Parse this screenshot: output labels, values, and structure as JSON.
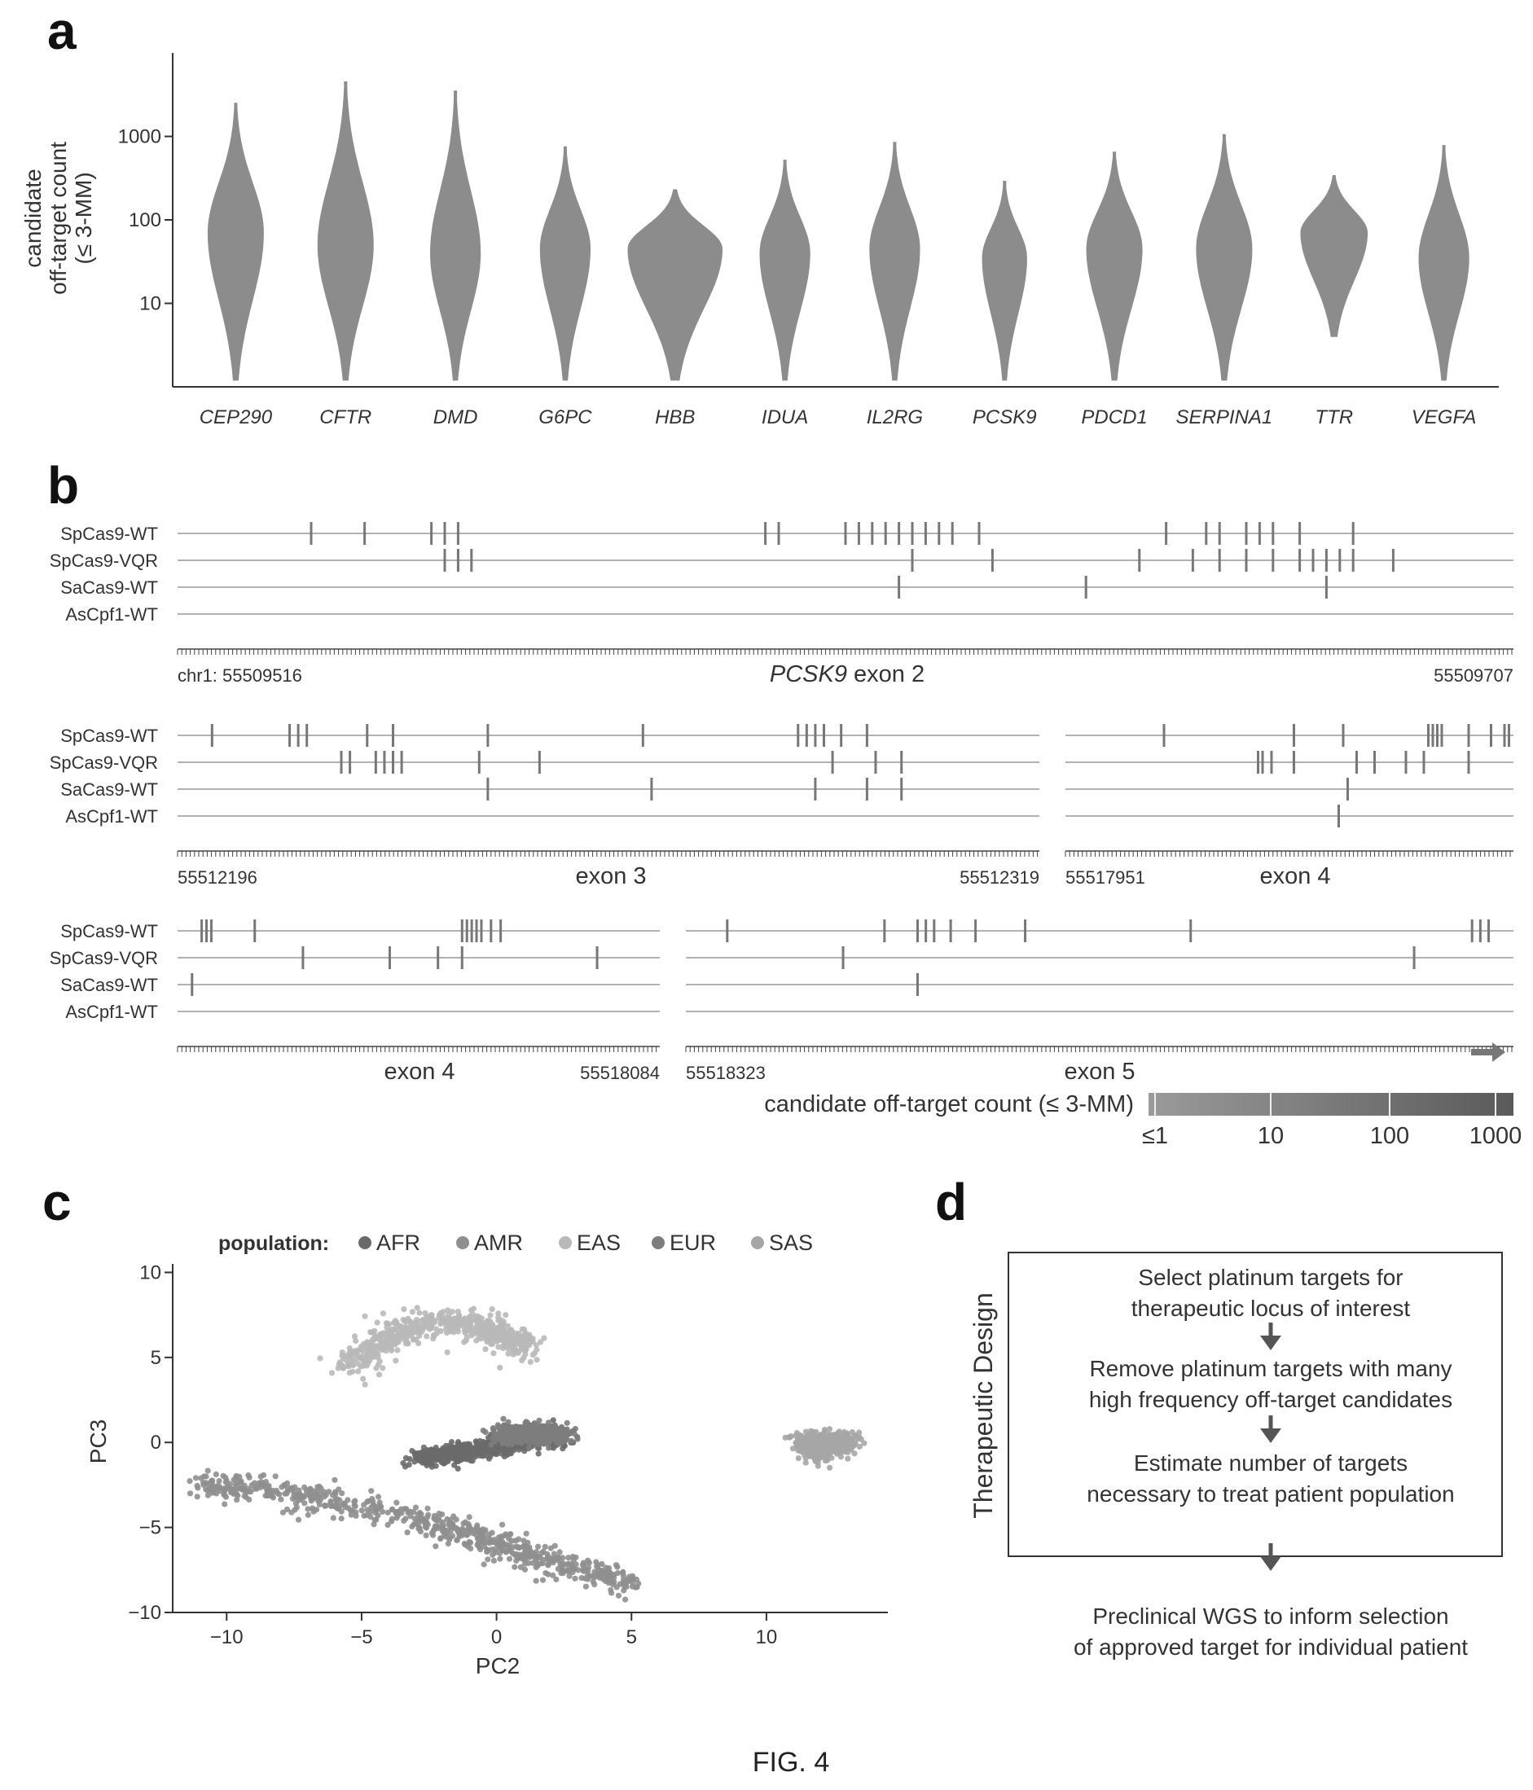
{
  "caption": "FIG. 4",
  "panels": {
    "a": "a",
    "b": "b",
    "c": "c",
    "d": "d"
  },
  "chart_data": [
    {
      "id": "a",
      "type": "violin",
      "ylabel_lines": [
        "candidate",
        "off-target count",
        "(≤ 3-MM)"
      ],
      "y_scale": "log",
      "ylim": [
        1,
        10000
      ],
      "yticks": [
        10,
        100,
        1000
      ],
      "categories": [
        "CEP290",
        "CFTR",
        "DMD",
        "G6PC",
        "HBB",
        "IDUA",
        "IL2RG",
        "PCSK9",
        "PDCD1",
        "SERPINA1",
        "TTR",
        "VEGFA"
      ],
      "violins": [
        {
          "min": 1.2,
          "max": 2500,
          "peak": 70,
          "spread": 1.0
        },
        {
          "min": 1.2,
          "max": 4500,
          "peak": 50,
          "spread": 1.0
        },
        {
          "min": 1.2,
          "max": 3500,
          "peak": 40,
          "spread": 0.9
        },
        {
          "min": 1.2,
          "max": 750,
          "peak": 45,
          "spread": 0.9
        },
        {
          "min": 1.2,
          "max": 230,
          "peak": 45,
          "spread": 1.7
        },
        {
          "min": 1.2,
          "max": 520,
          "peak": 40,
          "spread": 0.9
        },
        {
          "min": 1.2,
          "max": 850,
          "peak": 45,
          "spread": 0.9
        },
        {
          "min": 1.2,
          "max": 290,
          "peak": 35,
          "spread": 0.8
        },
        {
          "min": 1.2,
          "max": 650,
          "peak": 45,
          "spread": 1.0
        },
        {
          "min": 1.2,
          "max": 1050,
          "peak": 45,
          "spread": 1.0
        },
        {
          "min": 4,
          "max": 340,
          "peak": 70,
          "spread": 1.2
        },
        {
          "min": 1.2,
          "max": 780,
          "peak": 35,
          "spread": 0.9
        }
      ]
    },
    {
      "id": "b",
      "type": "genome_tracks",
      "tracks": [
        "SpCas9-WT",
        "SpCas9-VQR",
        "SaCas9-WT",
        "AsCpf1-WT"
      ],
      "colorbar": {
        "label": "candidate off-target count (≤ 3-MM)",
        "ticks": [
          "≤1",
          "10",
          "100",
          "1000"
        ]
      },
      "loci": [
        {
          "chrom_label": "chr1: 55509516",
          "title_gene": "PCSK9",
          "title_rest": " exon 2",
          "start_label": "",
          "end_label": "55509707",
          "marks": [
            [
              0.1,
              0.14,
              0.19,
              0.2,
              0.21,
              0.44,
              0.45,
              0.5,
              0.51,
              0.52,
              0.53,
              0.54,
              0.55,
              0.56,
              0.57,
              0.58,
              0.6,
              0.74,
              0.77,
              0.78,
              0.8,
              0.81,
              0.82,
              0.84,
              0.88
            ],
            [
              0.2,
              0.21,
              0.22,
              0.55,
              0.61,
              0.72,
              0.76,
              0.78,
              0.8,
              0.82,
              0.84,
              0.85,
              0.86,
              0.87,
              0.88,
              0.91
            ],
            [
              0.54,
              0.68,
              0.86
            ],
            []
          ]
        },
        {
          "chrom_label": "",
          "title_gene": "",
          "title_rest": "exon 3",
          "start_label": "55512196",
          "end_label": "55512319",
          "marks": [
            [
              0.04,
              0.13,
              0.14,
              0.15,
              0.22,
              0.25,
              0.36,
              0.54,
              0.72,
              0.73,
              0.74,
              0.75,
              0.77,
              0.8
            ],
            [
              0.19,
              0.2,
              0.23,
              0.24,
              0.25,
              0.26,
              0.35,
              0.42,
              0.76,
              0.81,
              0.84
            ],
            [
              0.36,
              0.55,
              0.74,
              0.8,
              0.84
            ],
            []
          ]
        },
        {
          "chrom_label": "",
          "title_gene": "",
          "title_rest": "exon 4",
          "start_label": "55517951",
          "end_label": "",
          "marks": [
            [
              0.22,
              0.51,
              0.62,
              0.81,
              0.82,
              0.83,
              0.84,
              0.9,
              0.95,
              0.98,
              0.99
            ],
            [
              0.43,
              0.44,
              0.46,
              0.51,
              0.65,
              0.69,
              0.76,
              0.8,
              0.9
            ],
            [
              0.63
            ],
            [
              0.61
            ]
          ]
        },
        {
          "chrom_label": "",
          "title_gene": "",
          "title_rest": "exon 4",
          "start_label": "",
          "end_label": "55518084",
          "marks": [
            [
              0.05,
              0.06,
              0.07,
              0.16,
              0.59,
              0.6,
              0.61,
              0.62,
              0.63,
              0.65,
              0.67
            ],
            [
              0.26,
              0.44,
              0.54,
              0.59,
              0.87
            ],
            [
              0.03
            ],
            []
          ]
        },
        {
          "chrom_label": "",
          "title_gene": "",
          "title_rest": "exon 5",
          "start_label": "55518323",
          "end_label": "",
          "marks": [
            [
              0.05,
              0.24,
              0.28,
              0.29,
              0.3,
              0.32,
              0.35,
              0.41,
              0.61,
              0.95,
              0.96,
              0.97
            ],
            [
              0.19,
              0.88
            ],
            [
              0.28
            ],
            []
          ]
        }
      ]
    },
    {
      "id": "c",
      "type": "scatter",
      "xlabel": "PC2",
      "ylabel": "PC3",
      "xlim": [
        -12,
        14.5
      ],
      "ylim": [
        -10,
        10.5
      ],
      "xticks": [
        -10,
        -5,
        0,
        5,
        10
      ],
      "yticks": [
        -10,
        -5,
        0,
        5,
        10
      ],
      "legend_title": "population:",
      "legend_placement": "top",
      "series": [
        {
          "name": "AFR",
          "color": "#6a6a6a"
        },
        {
          "name": "AMR",
          "color": "#8f8f8f"
        },
        {
          "name": "EAS",
          "color": "#b9b9b9"
        },
        {
          "name": "EUR",
          "color": "#7d7d7d"
        },
        {
          "name": "SAS",
          "color": "#a6a6a6"
        }
      ],
      "clusters": [
        {
          "series": "EAS",
          "n": 650,
          "path": [
            [
              -5.5,
              4.5
            ],
            [
              -4,
              6.2
            ],
            [
              -2,
              7.2
            ],
            [
              0,
              6.5
            ],
            [
              1,
              5.5
            ]
          ],
          "spread": 0.7
        },
        {
          "series": "AFR",
          "n": 700,
          "path": [
            [
              -3,
              -1.0
            ],
            [
              -1.5,
              -0.6
            ],
            [
              0,
              -0.2
            ],
            [
              1,
              0.2
            ],
            [
              2.5,
              0.3
            ]
          ],
          "spread": 0.5
        },
        {
          "series": "EUR",
          "n": 550,
          "path": [
            [
              0.2,
              0.4
            ],
            [
              1.2,
              0.6
            ],
            [
              2.4,
              0.4
            ]
          ],
          "spread": 0.5
        },
        {
          "series": "AMR",
          "n": 700,
          "path": [
            [
              -11,
              -2.5
            ],
            [
              -9,
              -2.7
            ],
            [
              -6,
              -3.5
            ],
            [
              -3,
              -4.5
            ],
            [
              -1,
              -5.5
            ],
            [
              1,
              -6.5
            ],
            [
              3,
              -7.5
            ],
            [
              5,
              -8.3
            ]
          ],
          "spread": 0.7
        },
        {
          "series": "SAS",
          "n": 500,
          "path": [
            [
              11.5,
              0
            ],
            [
              12,
              -0.3
            ],
            [
              13,
              0.1
            ]
          ],
          "spread": 0.6
        }
      ]
    }
  ],
  "flowchart": {
    "side_label": "Therapeutic Design",
    "steps": [
      [
        "Select platinum targets for",
        "therapeutic locus of interest"
      ],
      [
        "Remove platinum targets with many",
        "high frequency off-target candidates"
      ],
      [
        "Estimate number of targets",
        "necessary to treat patient population"
      ],
      [
        "Preclinical WGS to inform selection",
        "of approved target  for individual patient"
      ]
    ]
  }
}
